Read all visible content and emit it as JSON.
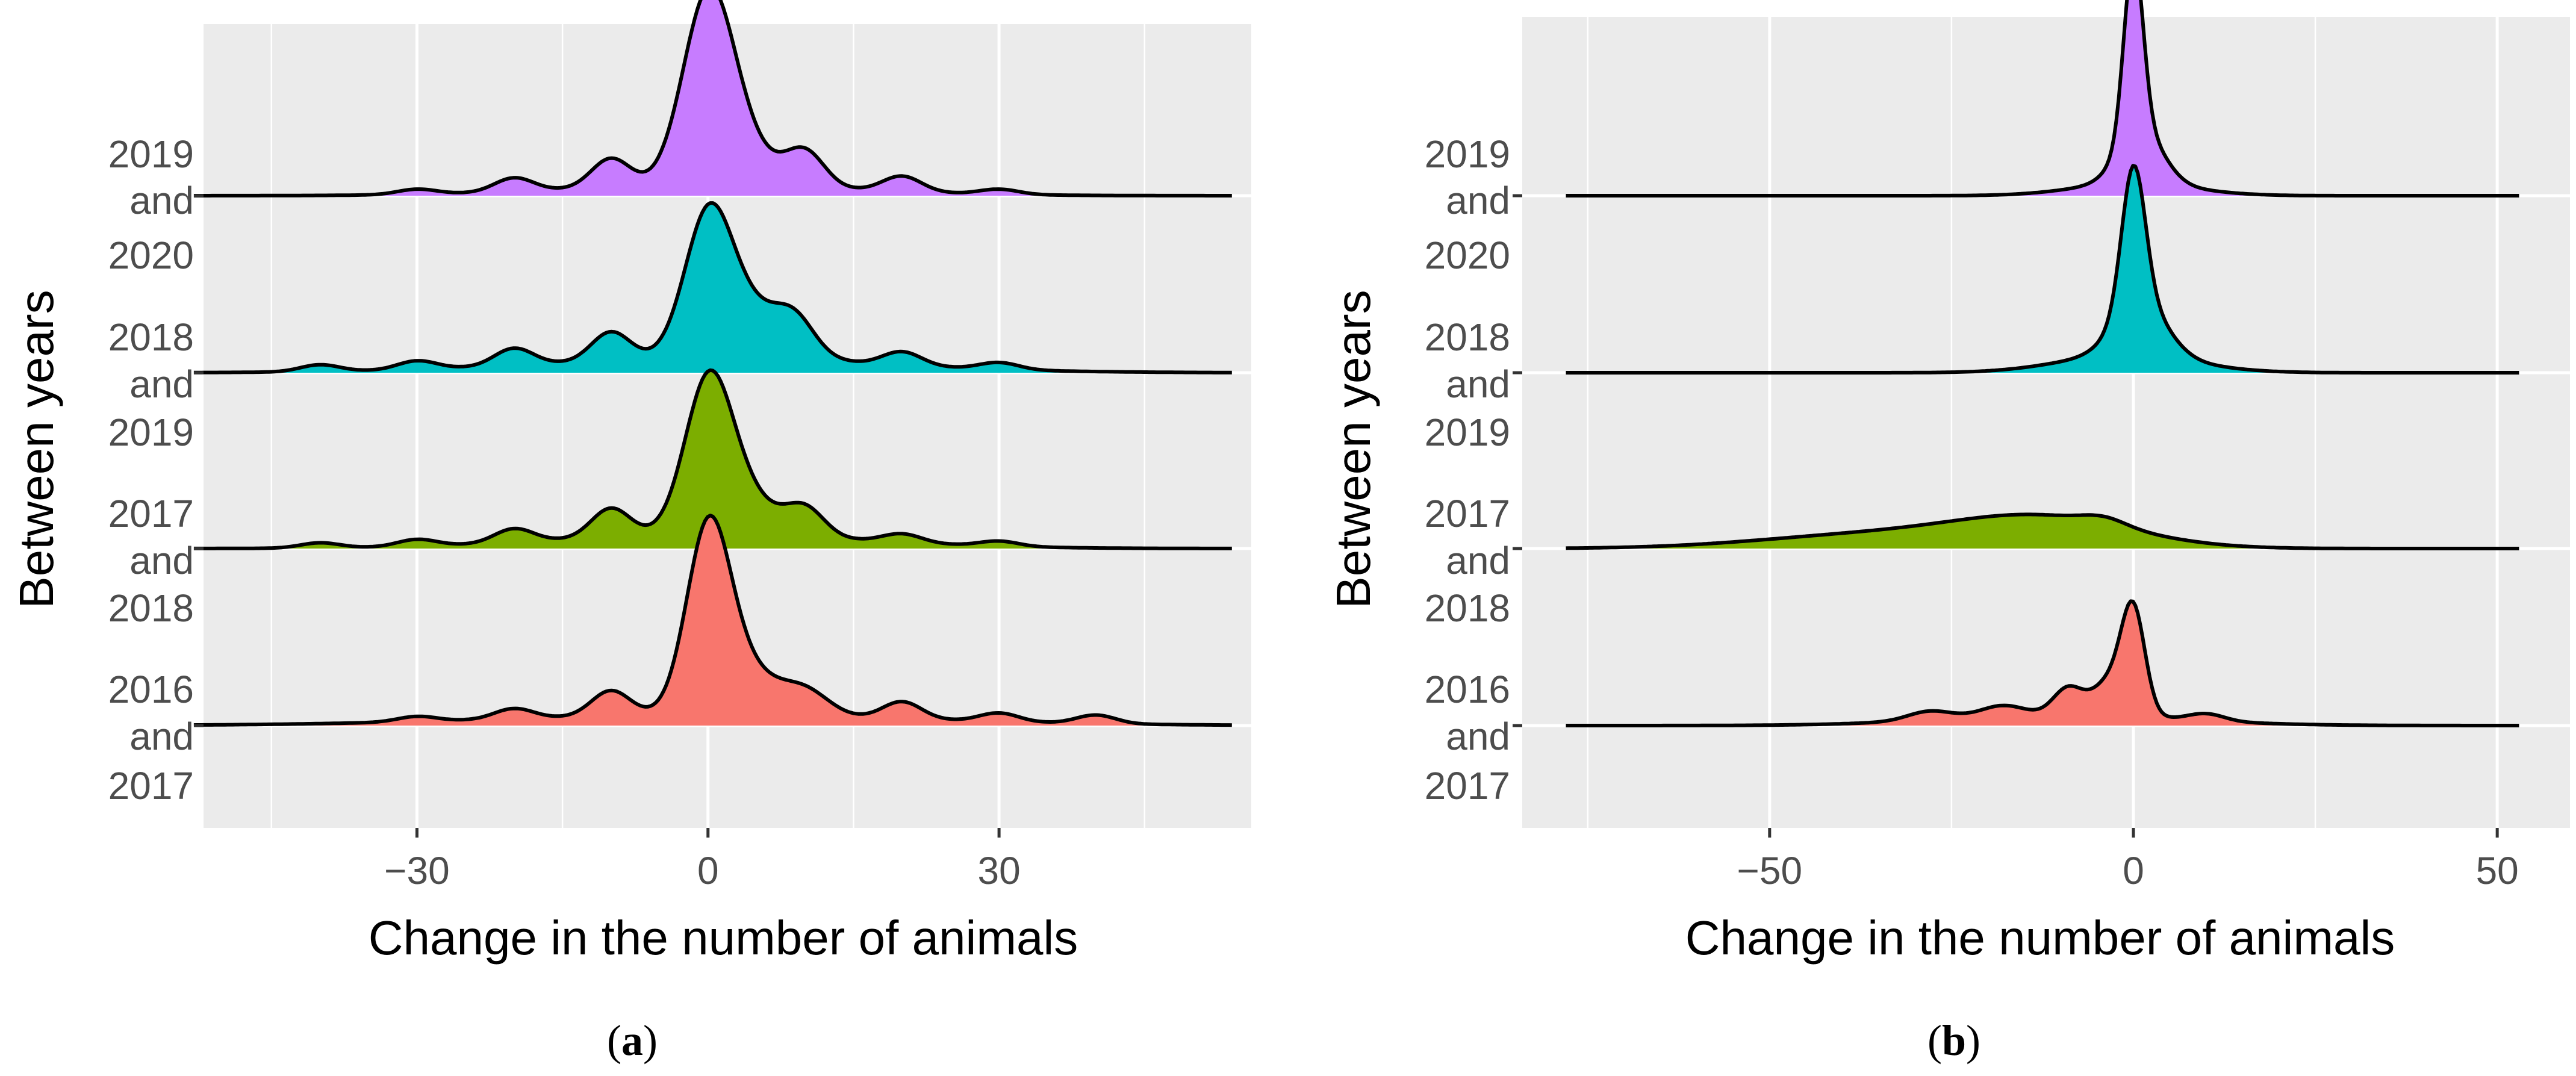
{
  "colors": {
    "panel_background": "#ebebeb",
    "grid": "#ffffff",
    "series": [
      "#c77cff",
      "#00bfc4",
      "#7cae00",
      "#f8766d"
    ]
  },
  "chart_data": [
    {
      "type": "ridgeline",
      "panel": "a",
      "caption_letter": "a",
      "xlabel": "Change in the number of animals",
      "ylabel": "Between years",
      "xlim": [
        -52,
        56
      ],
      "xticks": [
        -30,
        0,
        30
      ],
      "x_tick_labels": [
        "−30",
        "0",
        "30"
      ],
      "x_extent": [
        -53,
        54
      ],
      "y_tick_labels": [
        [
          "2019",
          "and"
        ],
        [
          "2020",
          "2018",
          "and"
        ],
        [
          "2019",
          "2017",
          "and"
        ],
        [
          "2018",
          "2016",
          "and"
        ],
        [
          "2017"
        ]
      ],
      "series": [
        {
          "name": "2019 and 2020",
          "color": "#c77cff",
          "peaks": [
            {
              "x": 0,
              "h": 1.0,
              "w": 2.6
            },
            {
              "x": 3,
              "h": 0.22,
              "w": 3.5
            },
            {
              "x": -10,
              "h": 0.17,
              "w": 2
            },
            {
              "x": 10,
              "h": 0.2,
              "w": 2
            },
            {
              "x": -20,
              "h": 0.08,
              "w": 2
            },
            {
              "x": 20,
              "h": 0.09,
              "w": 2
            },
            {
              "x": -30,
              "h": 0.03,
              "w": 2
            },
            {
              "x": 30,
              "h": 0.03,
              "w": 2
            },
            {
              "x": 0,
              "h": 0.06,
              "w": 15
            }
          ]
        },
        {
          "name": "2018 and 2019",
          "color": "#00bfc4",
          "peaks": [
            {
              "x": 0,
              "h": 0.72,
              "w": 2.4
            },
            {
              "x": 4,
              "h": 0.3,
              "w": 4
            },
            {
              "x": -10,
              "h": 0.17,
              "w": 2
            },
            {
              "x": 9,
              "h": 0.16,
              "w": 2
            },
            {
              "x": -20,
              "h": 0.1,
              "w": 2
            },
            {
              "x": 20,
              "h": 0.08,
              "w": 2
            },
            {
              "x": -30,
              "h": 0.05,
              "w": 2
            },
            {
              "x": 30,
              "h": 0.04,
              "w": 2
            },
            {
              "x": -40,
              "h": 0.04,
              "w": 2
            },
            {
              "x": 0,
              "h": 0.08,
              "w": 18
            }
          ]
        },
        {
          "name": "2017 and 2018",
          "color": "#7cae00",
          "peaks": [
            {
              "x": 0,
              "h": 0.78,
              "w": 2.4
            },
            {
              "x": 3,
              "h": 0.25,
              "w": 3.5
            },
            {
              "x": -10,
              "h": 0.17,
              "w": 2
            },
            {
              "x": 10,
              "h": 0.16,
              "w": 2
            },
            {
              "x": -20,
              "h": 0.08,
              "w": 2
            },
            {
              "x": 20,
              "h": 0.05,
              "w": 2
            },
            {
              "x": -30,
              "h": 0.04,
              "w": 2
            },
            {
              "x": 30,
              "h": 0.03,
              "w": 2
            },
            {
              "x": -40,
              "h": 0.03,
              "w": 2
            },
            {
              "x": 0,
              "h": 0.08,
              "w": 16
            }
          ]
        },
        {
          "name": "2016 and 2017",
          "color": "#f8766d",
          "peaks": [
            {
              "x": 0,
              "h": 0.95,
              "w": 2.2
            },
            {
              "x": 3,
              "h": 0.3,
              "w": 3.5
            },
            {
              "x": -10,
              "h": 0.15,
              "w": 2
            },
            {
              "x": 10,
              "h": 0.14,
              "w": 2.5
            },
            {
              "x": -20,
              "h": 0.06,
              "w": 2
            },
            {
              "x": 20,
              "h": 0.1,
              "w": 2
            },
            {
              "x": -30,
              "h": 0.03,
              "w": 2
            },
            {
              "x": 30,
              "h": 0.05,
              "w": 2
            },
            {
              "x": 40,
              "h": 0.05,
              "w": 2
            },
            {
              "x": 0,
              "h": 0.06,
              "w": 22
            }
          ]
        }
      ]
    },
    {
      "type": "ridgeline",
      "panel": "b",
      "caption_letter": "b",
      "xlabel": "Change in the number of animals",
      "ylabel": "Between years",
      "xlim": [
        -84,
        60
      ],
      "xticks": [
        -50,
        0,
        50
      ],
      "x_tick_labels": [
        "−50",
        "0",
        "50"
      ],
      "x_extent": [
        -78,
        53
      ],
      "y_tick_labels": [
        [
          "2019",
          "and"
        ],
        [
          "2020",
          "2018",
          "and"
        ],
        [
          "2019",
          "2017",
          "and"
        ],
        [
          "2018",
          "2016",
          "and"
        ],
        [
          "2017"
        ]
      ],
      "series": [
        {
          "name": "2019 and 2020",
          "color": "#c77cff",
          "peaks": [
            {
              "x": 0,
              "h": 1.0,
              "w": 1.3
            },
            {
              "x": 1,
              "h": 0.3,
              "w": 3
            },
            {
              "x": 0,
              "h": 0.07,
              "w": 8
            }
          ]
        },
        {
          "name": "2018 and 2019",
          "color": "#00bfc4",
          "peaks": [
            {
              "x": 0,
              "h": 0.78,
              "w": 1.6
            },
            {
              "x": 1,
              "h": 0.3,
              "w": 3.5
            },
            {
              "x": -1,
              "h": 0.1,
              "w": 9
            }
          ]
        },
        {
          "name": "2017 and 2018",
          "color": "#7cae00",
          "peaks": [
            {
              "x": -12,
              "h": 0.16,
              "w": 12
            },
            {
              "x": -35,
              "h": 0.08,
              "w": 16
            },
            {
              "x": -4,
              "h": 0.04,
              "w": 3
            }
          ]
        },
        {
          "name": "2016 and 2017",
          "color": "#f8766d",
          "peaks": [
            {
              "x": 0,
              "h": 0.55,
              "w": 1.6
            },
            {
              "x": -3,
              "h": 0.2,
              "w": 2.5
            },
            {
              "x": -9,
              "h": 0.15,
              "w": 2
            },
            {
              "x": -18,
              "h": 0.06,
              "w": 3
            },
            {
              "x": -28,
              "h": 0.05,
              "w": 3
            },
            {
              "x": 10,
              "h": 0.04,
              "w": 2.5
            },
            {
              "x": -10,
              "h": 0.06,
              "w": 16
            }
          ]
        }
      ]
    }
  ]
}
